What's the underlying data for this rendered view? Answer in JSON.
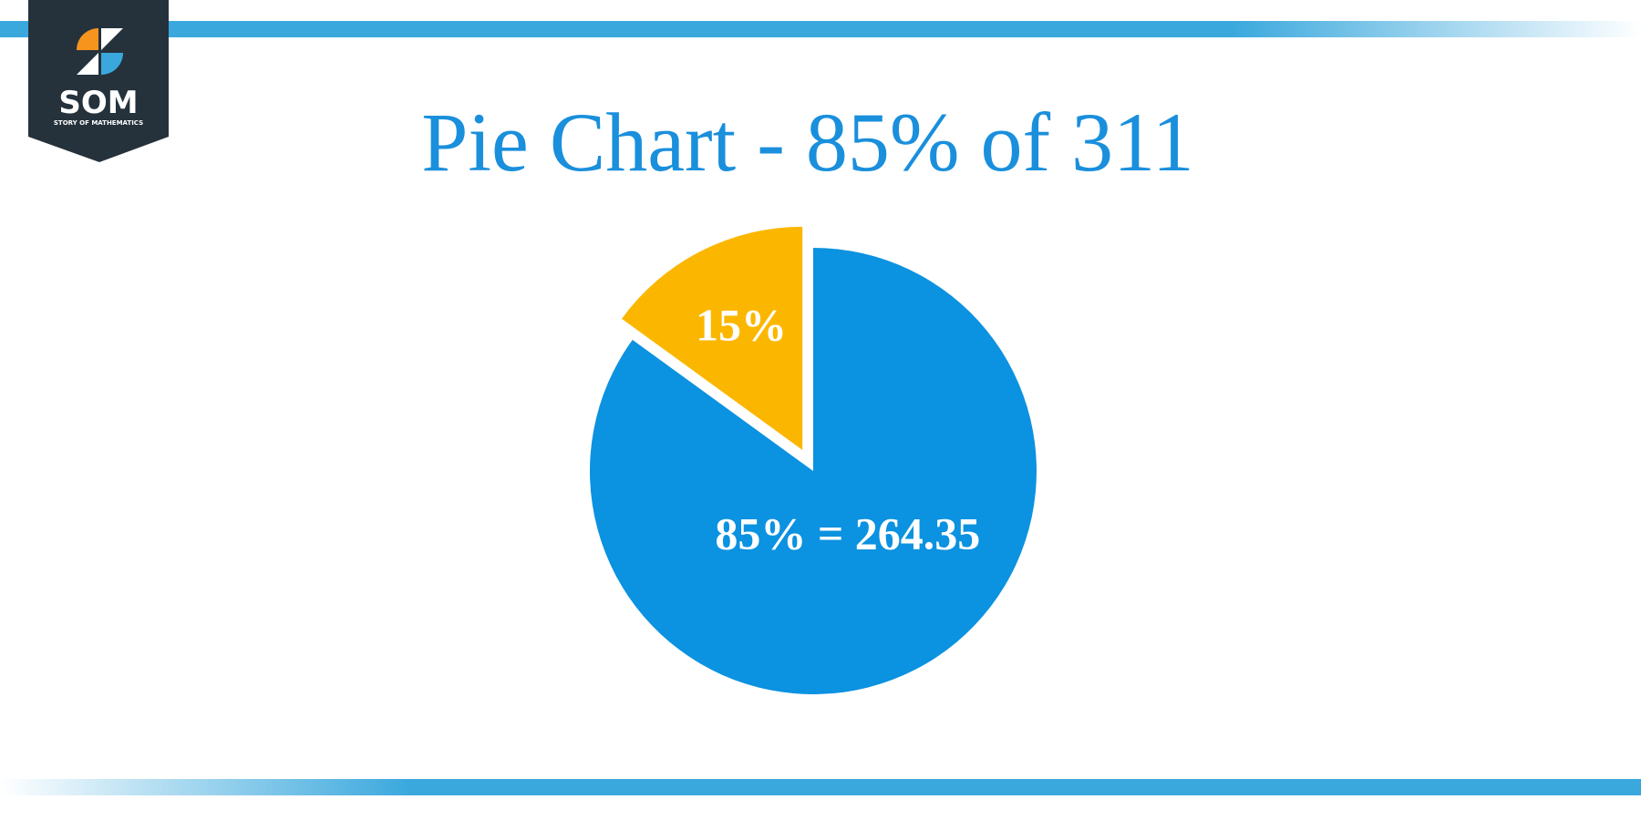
{
  "logo": {
    "title": "SOM",
    "subtitle": "STORY OF MATHEMATICS"
  },
  "chart_data": {
    "type": "pie",
    "title": "Pie Chart - 85% of 311",
    "values": [
      85,
      15
    ],
    "value_labels": [
      "85% = 264.35",
      "15%"
    ],
    "colors": [
      "#0b92e0",
      "#fbb700"
    ]
  }
}
